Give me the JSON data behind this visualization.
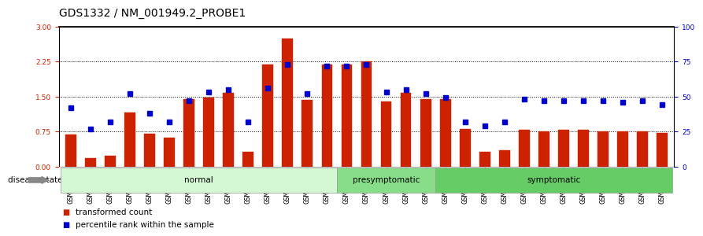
{
  "title": "GDS1332 / NM_001949.2_PROBE1",
  "samples": [
    "GSM30698",
    "GSM30699",
    "GSM30700",
    "GSM30701",
    "GSM30702",
    "GSM30703",
    "GSM30704",
    "GSM30705",
    "GSM30706",
    "GSM30707",
    "GSM30708",
    "GSM30709",
    "GSM30710",
    "GSM30711",
    "GSM30693",
    "GSM30694",
    "GSM30695",
    "GSM30696",
    "GSM30697",
    "GSM30681",
    "GSM30682",
    "GSM30683",
    "GSM30684",
    "GSM30685",
    "GSM30686",
    "GSM30687",
    "GSM30688",
    "GSM30689",
    "GSM30690",
    "GSM30691",
    "GSM30692"
  ],
  "bar_values": [
    0.68,
    0.18,
    0.22,
    1.15,
    0.7,
    0.62,
    1.45,
    1.48,
    1.58,
    0.32,
    2.18,
    2.75,
    1.42,
    2.18,
    2.18,
    2.25,
    1.4,
    1.58,
    1.45,
    1.45,
    0.8,
    0.32,
    0.35,
    0.78,
    0.75,
    0.78,
    0.78,
    0.75,
    0.75,
    0.75,
    0.72
  ],
  "percentile_values": [
    42,
    27,
    32,
    52,
    38,
    32,
    47,
    53,
    55,
    32,
    56,
    73,
    52,
    72,
    72,
    73,
    53,
    55,
    52,
    49,
    32,
    29,
    32,
    48,
    47,
    47,
    47,
    47,
    46,
    47,
    44
  ],
  "groups": [
    {
      "label": "normal",
      "start": 0,
      "end": 14,
      "color": "#d4f7d4"
    },
    {
      "label": "presymptomatic",
      "start": 14,
      "end": 19,
      "color": "#88dd88"
    },
    {
      "label": "symptomatic",
      "start": 19,
      "end": 31,
      "color": "#66cc66"
    }
  ],
  "ylim_left": [
    0,
    3
  ],
  "ylim_right": [
    0,
    100
  ],
  "yticks_left": [
    0,
    0.75,
    1.5,
    2.25,
    3
  ],
  "yticks_right": [
    0,
    25,
    50,
    75,
    100
  ],
  "bar_color": "#cc2200",
  "marker_color": "#0000cc",
  "title_fontsize": 10,
  "tick_fontsize": 6.5,
  "label_fontsize": 7.5
}
